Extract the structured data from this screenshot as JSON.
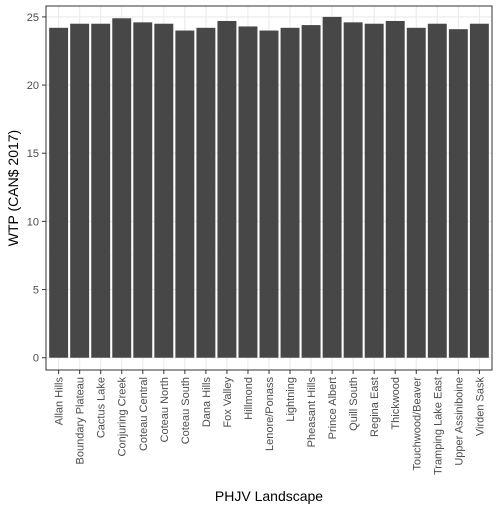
{
  "chart_data": {
    "type": "bar",
    "xlabel": "PHJV Landscape",
    "ylabel": "WTP (CAN$ 2017)",
    "ylim": [
      -0.9,
      25.8
    ],
    "yticks": [
      0,
      5,
      10,
      15,
      20,
      25
    ],
    "ytick_labels": [
      "0",
      "5",
      "10",
      "15",
      "20",
      "25"
    ],
    "grid": true,
    "bar_color": "#474747",
    "panel_border_color": "#333333",
    "grid_major_color": "#ebebeb",
    "grid_minor_color": "#f5f5f5",
    "categories": [
      "Allan Hills",
      "Boundary Plateau",
      "Cactus Lake",
      "Conjuring Creek",
      "Coteau Central",
      "Coteau North",
      "Coteau South",
      "Dana Hills",
      "Fox Valley",
      "Hillmond",
      "Lenore/Ponass",
      "Lightning",
      "Pheasant Hills",
      "Prince Albert",
      "Quill South",
      "Regina East",
      "Thickwood",
      "Touchwood/Beaver",
      "Tramping Lake East",
      "Upper Assiniboine",
      "Virden Sask"
    ],
    "values": [
      24.2,
      24.5,
      24.5,
      24.9,
      24.6,
      24.5,
      24.0,
      24.2,
      24.7,
      24.3,
      24.0,
      24.2,
      24.4,
      25.0,
      24.6,
      24.5,
      24.7,
      24.2,
      24.5,
      24.1,
      24.5
    ]
  }
}
